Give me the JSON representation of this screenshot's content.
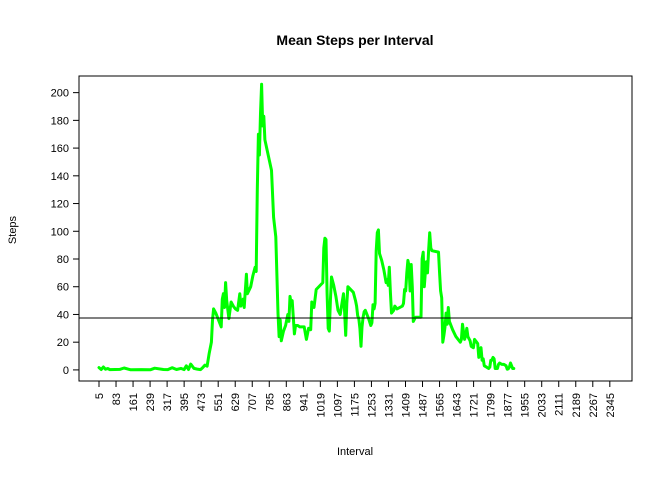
{
  "chart_data": {
    "type": "line",
    "title": "Mean Steps per Interval",
    "xlabel": "Interval",
    "ylabel": "Steps",
    "xlim": [
      5,
      2355
    ],
    "ylim": [
      -8,
      212
    ],
    "x_ticks": [
      5,
      83,
      161,
      239,
      317,
      395,
      473,
      551,
      629,
      707,
      785,
      863,
      941,
      1019,
      1097,
      1175,
      1253,
      1331,
      1409,
      1487,
      1565,
      1643,
      1721,
      1799,
      1877,
      1955,
      2033,
      2111,
      2189,
      2267,
      2345
    ],
    "y_ticks": [
      0,
      20,
      40,
      60,
      80,
      100,
      120,
      140,
      160,
      180,
      200
    ],
    "grid": false,
    "reference_line": {
      "orientation": "horizontal",
      "y": 37.4,
      "color": "#000000"
    },
    "series": [
      {
        "color": "#00ff00",
        "points": [
          [
            5,
            1.7
          ],
          [
            15,
            0.3
          ],
          [
            25,
            2.1
          ],
          [
            35,
            0.5
          ],
          [
            45,
            1.0
          ],
          [
            55,
            0.2
          ],
          [
            100,
            0.4
          ],
          [
            120,
            1.4
          ],
          [
            150,
            0.1
          ],
          [
            200,
            0.2
          ],
          [
            240,
            0.1
          ],
          [
            260,
            1.2
          ],
          [
            300,
            0.3
          ],
          [
            320,
            0.2
          ],
          [
            340,
            1.6
          ],
          [
            360,
            0.3
          ],
          [
            380,
            1.1
          ],
          [
            395,
            0.2
          ],
          [
            405,
            3.0
          ],
          [
            415,
            0.3
          ],
          [
            425,
            4.2
          ],
          [
            440,
            1.1
          ],
          [
            455,
            0.6
          ],
          [
            470,
            0.2
          ],
          [
            480,
            1.7
          ],
          [
            490,
            3.5
          ],
          [
            500,
            2.7
          ],
          [
            510,
            12.0
          ],
          [
            520,
            20.0
          ],
          [
            525,
            36.0
          ],
          [
            530,
            44.0
          ],
          [
            540,
            41.0
          ],
          [
            555,
            35.0
          ],
          [
            565,
            31.0
          ],
          [
            570,
            51.0
          ],
          [
            575,
            55.0
          ],
          [
            580,
            45.0
          ],
          [
            585,
            63.0
          ],
          [
            590,
            50.0
          ],
          [
            600,
            37.0
          ],
          [
            610,
            49.0
          ],
          [
            620,
            46.0
          ],
          [
            630,
            44.0
          ],
          [
            640,
            43.0
          ],
          [
            650,
            55.0
          ],
          [
            655,
            46.0
          ],
          [
            665,
            51.0
          ],
          [
            670,
            45.0
          ],
          [
            680,
            69.0
          ],
          [
            685,
            55.0
          ],
          [
            700,
            60.0
          ],
          [
            710,
            68.0
          ],
          [
            720,
            74.0
          ],
          [
            725,
            71.0
          ],
          [
            730,
            130.0
          ],
          [
            735,
            170.0
          ],
          [
            740,
            155.0
          ],
          [
            745,
            185.0
          ],
          [
            750,
            206.0
          ],
          [
            755,
            176.0
          ],
          [
            760,
            183.0
          ],
          [
            765,
            166.0
          ],
          [
            795,
            144.0
          ],
          [
            805,
            110.0
          ],
          [
            815,
            96.0
          ],
          [
            825,
            41.0
          ],
          [
            830,
            24.0
          ],
          [
            835,
            36.0
          ],
          [
            840,
            21.0
          ],
          [
            850,
            28.0
          ],
          [
            860,
            32.0
          ],
          [
            870,
            40.0
          ],
          [
            875,
            35.0
          ],
          [
            880,
            53.0
          ],
          [
            885,
            48.0
          ],
          [
            890,
            50.0
          ],
          [
            900,
            26.0
          ],
          [
            905,
            32.0
          ],
          [
            915,
            32.0
          ],
          [
            925,
            31.0
          ],
          [
            935,
            31.0
          ],
          [
            945,
            31.0
          ],
          [
            955,
            22.0
          ],
          [
            965,
            30.0
          ],
          [
            975,
            29.0
          ],
          [
            980,
            49.0
          ],
          [
            990,
            45.0
          ],
          [
            1000,
            58.0
          ],
          [
            1030,
            63.0
          ],
          [
            1035,
            88.0
          ],
          [
            1040,
            95.0
          ],
          [
            1045,
            94.0
          ],
          [
            1050,
            55.0
          ],
          [
            1055,
            30.0
          ],
          [
            1060,
            28.0
          ],
          [
            1065,
            50.0
          ],
          [
            1070,
            67.0
          ],
          [
            1080,
            61.0
          ],
          [
            1090,
            53.0
          ],
          [
            1100,
            43.0
          ],
          [
            1110,
            40.0
          ],
          [
            1115,
            45.0
          ],
          [
            1125,
            55.0
          ],
          [
            1130,
            42.0
          ],
          [
            1135,
            25.0
          ],
          [
            1140,
            48.0
          ],
          [
            1145,
            60.0
          ],
          [
            1170,
            56.0
          ],
          [
            1180,
            50.0
          ],
          [
            1185,
            46.0
          ],
          [
            1190,
            39.0
          ],
          [
            1195,
            37.0
          ],
          [
            1200,
            30.0
          ],
          [
            1205,
            17.0
          ],
          [
            1210,
            31.0
          ],
          [
            1215,
            38.0
          ],
          [
            1220,
            42.0
          ],
          [
            1225,
            43.0
          ],
          [
            1240,
            37.0
          ],
          [
            1250,
            32.0
          ],
          [
            1255,
            34.0
          ],
          [
            1260,
            47.0
          ],
          [
            1265,
            44.0
          ],
          [
            1270,
            48.0
          ],
          [
            1275,
            86.0
          ],
          [
            1280,
            99.0
          ],
          [
            1285,
            101.0
          ],
          [
            1290,
            84.0
          ],
          [
            1300,
            79.0
          ],
          [
            1310,
            72.0
          ],
          [
            1320,
            63.0
          ],
          [
            1325,
            65.0
          ],
          [
            1330,
            61.0
          ],
          [
            1335,
            74.0
          ],
          [
            1340,
            56.0
          ],
          [
            1345,
            41.0
          ],
          [
            1355,
            43.0
          ],
          [
            1360,
            46.0
          ],
          [
            1370,
            44.0
          ],
          [
            1395,
            46.0
          ],
          [
            1400,
            48.0
          ],
          [
            1405,
            58.0
          ],
          [
            1410,
            57.0
          ],
          [
            1415,
            70.0
          ],
          [
            1420,
            79.0
          ],
          [
            1425,
            75.0
          ],
          [
            1430,
            57.0
          ],
          [
            1435,
            76.0
          ],
          [
            1440,
            60.0
          ],
          [
            1445,
            35.0
          ],
          [
            1455,
            38.0
          ],
          [
            1470,
            38.0
          ],
          [
            1480,
            38.0
          ],
          [
            1485,
            80.0
          ],
          [
            1490,
            85.0
          ],
          [
            1495,
            60.0
          ],
          [
            1500,
            71.0
          ],
          [
            1505,
            78.0
          ],
          [
            1510,
            70.0
          ],
          [
            1515,
            86.0
          ],
          [
            1520,
            99.0
          ],
          [
            1525,
            88.0
          ],
          [
            1530,
            86.0
          ],
          [
            1560,
            85.0
          ],
          [
            1565,
            71.0
          ],
          [
            1570,
            57.0
          ],
          [
            1575,
            52.0
          ],
          [
            1580,
            20.0
          ],
          [
            1585,
            25.0
          ],
          [
            1590,
            31.0
          ],
          [
            1595,
            41.0
          ],
          [
            1600,
            33.0
          ],
          [
            1605,
            45.0
          ],
          [
            1610,
            35.0
          ],
          [
            1625,
            29.0
          ],
          [
            1640,
            24.0
          ],
          [
            1660,
            20.0
          ],
          [
            1665,
            22.0
          ],
          [
            1670,
            33.0
          ],
          [
            1675,
            27.0
          ],
          [
            1680,
            22.0
          ],
          [
            1685,
            25.0
          ],
          [
            1690,
            30.0
          ],
          [
            1695,
            24.0
          ],
          [
            1705,
            21.0
          ],
          [
            1710,
            17.0
          ],
          [
            1720,
            16.0
          ],
          [
            1725,
            22.0
          ],
          [
            1730,
            21.0
          ],
          [
            1735,
            20.0
          ],
          [
            1740,
            19.0
          ],
          [
            1745,
            9.0
          ],
          [
            1750,
            15.0
          ],
          [
            1755,
            16.0
          ],
          [
            1760,
            7.0
          ],
          [
            1765,
            8.0
          ],
          [
            1770,
            3.0
          ],
          [
            1780,
            2.0
          ],
          [
            1790,
            1.0
          ],
          [
            1795,
            2.0
          ],
          [
            1800,
            7.0
          ],
          [
            1805,
            7.0
          ],
          [
            1810,
            9.0
          ],
          [
            1815,
            8.0
          ],
          [
            1820,
            1.0
          ],
          [
            1830,
            1.0
          ],
          [
            1835,
            4.0
          ],
          [
            1840,
            5.0
          ],
          [
            1850,
            4.0
          ],
          [
            1860,
            4.0
          ],
          [
            1870,
            3.0
          ],
          [
            1875,
            0.5
          ],
          [
            1880,
            0.8
          ],
          [
            1885,
            2.0
          ],
          [
            1890,
            5.0
          ],
          [
            1895,
            3.0
          ],
          [
            1900,
            1.0
          ],
          [
            1905,
            1.0
          ]
        ]
      }
    ]
  }
}
